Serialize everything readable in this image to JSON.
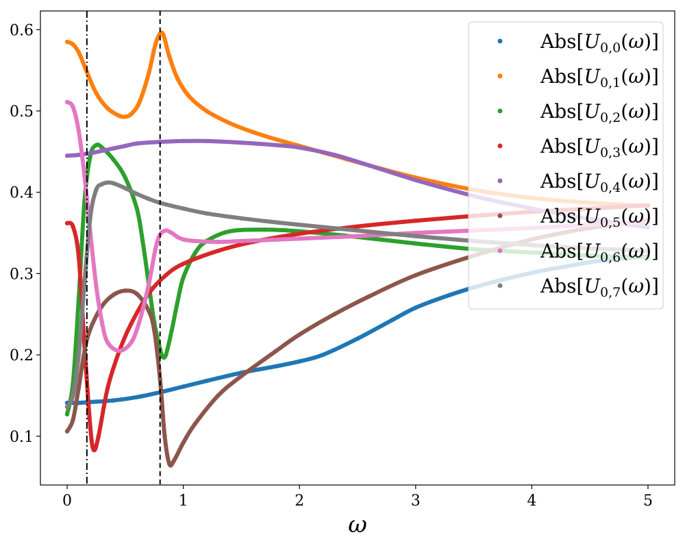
{
  "chart_data": {
    "type": "scatter",
    "xlabel": "ω",
    "ylabel": "",
    "xlim": [
      -0.23,
      5.23
    ],
    "ylim": [
      0.04,
      0.623
    ],
    "x_ticks": [
      0,
      1,
      2,
      3,
      4,
      5
    ],
    "y_ticks": [
      0.1,
      0.2,
      0.3,
      0.4,
      0.5,
      0.6
    ],
    "x_tick_labels": [
      "0",
      "1",
      "2",
      "3",
      "4",
      "5"
    ],
    "y_tick_labels": [
      "0.1",
      "0.2",
      "0.3",
      "0.4",
      "0.5",
      "0.6"
    ],
    "grid": false,
    "legend_position": "top-right",
    "vertical_lines": [
      {
        "x": 0.17,
        "style": "dash-dot",
        "color": "#000000"
      },
      {
        "x": 0.8,
        "style": "dashed",
        "color": "#000000"
      }
    ],
    "series": [
      {
        "name": "Abs[U_{0,0}(ω)]",
        "legend_label": "Abs[U0,0(ω)]",
        "sub": "0,0",
        "color": "#1f77b4",
        "x": [
          0,
          0.1,
          0.2,
          0.4,
          0.6,
          0.8,
          1.0,
          1.2,
          1.5,
          1.8,
          2.0,
          2.2,
          2.5,
          2.8,
          3.0,
          3.3,
          3.6,
          4.0,
          4.3,
          4.6,
          5.0
        ],
        "y": [
          0.141,
          0.141,
          0.142,
          0.144,
          0.148,
          0.154,
          0.161,
          0.168,
          0.178,
          0.186,
          0.192,
          0.2,
          0.22,
          0.243,
          0.258,
          0.274,
          0.287,
          0.301,
          0.309,
          0.316,
          0.321
        ]
      },
      {
        "name": "Abs[U_{0,1}(ω)]",
        "legend_label": "Abs[U0,1(ω)]",
        "sub": "0,1",
        "color": "#ff7f0e",
        "x": [
          0,
          0.05,
          0.1,
          0.17,
          0.25,
          0.35,
          0.45,
          0.5,
          0.55,
          0.62,
          0.7,
          0.76,
          0.8,
          0.83,
          0.88,
          0.95,
          1.05,
          1.2,
          1.4,
          1.6,
          1.8,
          2.0,
          2.3,
          2.6,
          3.0,
          3.5,
          4.0,
          4.5,
          5.0
        ],
        "y": [
          0.585,
          0.582,
          0.572,
          0.548,
          0.522,
          0.503,
          0.494,
          0.493,
          0.496,
          0.51,
          0.545,
          0.582,
          0.595,
          0.593,
          0.567,
          0.54,
          0.518,
          0.5,
          0.485,
          0.474,
          0.465,
          0.457,
          0.445,
          0.433,
          0.418,
          0.403,
          0.393,
          0.387,
          0.383
        ]
      },
      {
        "name": "Abs[U_{0,2}(ω)]",
        "legend_label": "Abs[U0,2(ω)]",
        "sub": "0,2",
        "color": "#2ca02c",
        "x": [
          0,
          0.05,
          0.1,
          0.15,
          0.2,
          0.25,
          0.3,
          0.4,
          0.5,
          0.6,
          0.65,
          0.7,
          0.75,
          0.8,
          0.82,
          0.85,
          0.9,
          0.95,
          1.0,
          1.1,
          1.2,
          1.4,
          1.7,
          2.0,
          2.5,
          3.0,
          3.5,
          4.0,
          4.5,
          5.0
        ],
        "y": [
          0.127,
          0.165,
          0.27,
          0.39,
          0.445,
          0.458,
          0.455,
          0.44,
          0.418,
          0.38,
          0.34,
          0.29,
          0.24,
          0.207,
          0.198,
          0.2,
          0.23,
          0.265,
          0.295,
          0.325,
          0.34,
          0.352,
          0.354,
          0.352,
          0.345,
          0.337,
          0.33,
          0.326,
          0.322,
          0.32
        ]
      },
      {
        "name": "Abs[U_{0,3}(ω)]",
        "legend_label": "Abs[U0,3(ω)]",
        "sub": "0,3",
        "color": "#d62728",
        "x": [
          0,
          0.05,
          0.1,
          0.15,
          0.2,
          0.23,
          0.27,
          0.35,
          0.45,
          0.55,
          0.7,
          0.85,
          1.0,
          1.3,
          1.6,
          2.0,
          2.5,
          3.0,
          3.5,
          4.0,
          4.5,
          5.0
        ],
        "y": [
          0.362,
          0.358,
          0.32,
          0.21,
          0.11,
          0.083,
          0.1,
          0.16,
          0.205,
          0.238,
          0.275,
          0.298,
          0.312,
          0.328,
          0.339,
          0.349,
          0.358,
          0.365,
          0.371,
          0.376,
          0.38,
          0.384
        ]
      },
      {
        "name": "Abs[U_{0,4}(ω)]",
        "legend_label": "Abs[U0,4(ω)]",
        "sub": "0,4",
        "color": "#9467bd",
        "x": [
          0,
          0.1,
          0.2,
          0.3,
          0.4,
          0.5,
          0.6,
          0.8,
          1.0,
          1.2,
          1.5,
          1.8,
          2.0,
          2.3,
          2.6,
          3.0,
          3.3,
          3.6,
          4.0,
          4.3,
          4.6,
          5.0
        ],
        "y": [
          0.445,
          0.446,
          0.448,
          0.451,
          0.454,
          0.457,
          0.46,
          0.462,
          0.463,
          0.463,
          0.461,
          0.458,
          0.455,
          0.446,
          0.433,
          0.415,
          0.403,
          0.392,
          0.38,
          0.372,
          0.365,
          0.357
        ]
      },
      {
        "name": "Abs[U_{0,5}(ω)]",
        "legend_label": "Abs[U0,5(ω)]",
        "sub": "0,5",
        "color": "#8c564b",
        "x": [
          0,
          0.05,
          0.1,
          0.15,
          0.2,
          0.3,
          0.4,
          0.5,
          0.6,
          0.7,
          0.75,
          0.8,
          0.84,
          0.88,
          0.92,
          1.0,
          1.1,
          1.3,
          1.5,
          1.8,
          2.0,
          2.3,
          2.6,
          3.0,
          3.5,
          4.0,
          4.5,
          5.0
        ],
        "y": [
          0.106,
          0.12,
          0.16,
          0.205,
          0.232,
          0.26,
          0.274,
          0.279,
          0.275,
          0.255,
          0.23,
          0.17,
          0.1,
          0.066,
          0.07,
          0.092,
          0.115,
          0.15,
          0.174,
          0.205,
          0.225,
          0.25,
          0.272,
          0.298,
          0.322,
          0.342,
          0.356,
          0.365
        ]
      },
      {
        "name": "Abs[U_{0,6}(ω)]",
        "legend_label": "Abs[U0,6(ω)]",
        "sub": "0,6",
        "color": "#e377c2",
        "x": [
          0,
          0.05,
          0.1,
          0.15,
          0.2,
          0.25,
          0.3,
          0.35,
          0.45,
          0.55,
          0.62,
          0.7,
          0.76,
          0.8,
          0.85,
          0.9,
          0.95,
          1.0,
          1.1,
          1.3,
          1.5,
          2.0,
          2.5,
          3.0,
          3.5,
          4.0,
          4.5,
          5.0
        ],
        "y": [
          0.511,
          0.505,
          0.475,
          0.42,
          0.35,
          0.285,
          0.24,
          0.215,
          0.205,
          0.215,
          0.24,
          0.285,
          0.33,
          0.348,
          0.353,
          0.35,
          0.345,
          0.342,
          0.34,
          0.339,
          0.34,
          0.343,
          0.346,
          0.35,
          0.353,
          0.356,
          0.36,
          0.363
        ]
      },
      {
        "name": "Abs[U_{0,7}(ω)]",
        "legend_label": "Abs[U0,7(ω)]",
        "sub": "0,7",
        "color": "#7f7f7f",
        "x": [
          0,
          0.05,
          0.1,
          0.15,
          0.2,
          0.25,
          0.3,
          0.35,
          0.4,
          0.5,
          0.6,
          0.7,
          0.8,
          1.0,
          1.2,
          1.5,
          1.8,
          2.0,
          2.5,
          3.0,
          3.5,
          4.0,
          4.5,
          5.0
        ],
        "y": [
          0.136,
          0.15,
          0.2,
          0.29,
          0.37,
          0.403,
          0.41,
          0.412,
          0.411,
          0.405,
          0.398,
          0.392,
          0.387,
          0.38,
          0.374,
          0.368,
          0.363,
          0.36,
          0.353,
          0.346,
          0.34,
          0.335,
          0.331,
          0.328
        ]
      }
    ]
  }
}
